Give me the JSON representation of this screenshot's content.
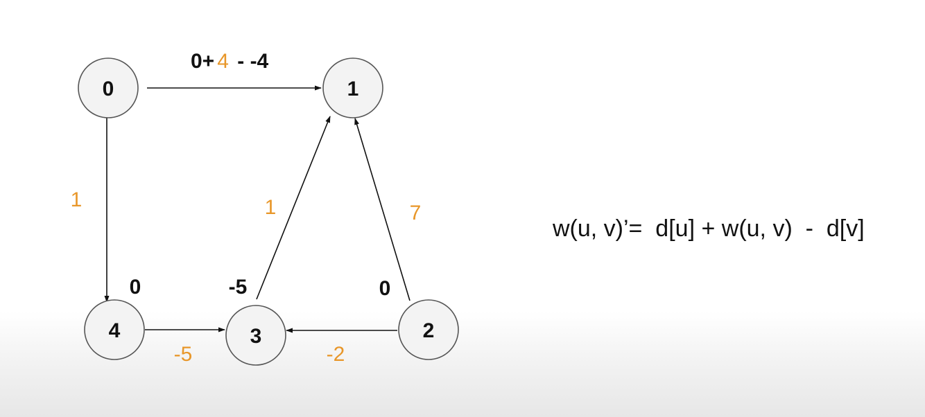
{
  "colors": {
    "accent": "#e8972a",
    "ink": "#111111",
    "node_fill": "#f3f3f3",
    "node_stroke": "#555555"
  },
  "nodes": [
    {
      "id": "0",
      "label": "0"
    },
    {
      "id": "1",
      "label": "1"
    },
    {
      "id": "2",
      "label": "2"
    },
    {
      "id": "3",
      "label": "3"
    },
    {
      "id": "4",
      "label": "4"
    }
  ],
  "distances": {
    "node_4": "0",
    "node_3": "-5",
    "node_2": "0"
  },
  "edges": [
    {
      "from": "0",
      "to": "1",
      "weight": "4"
    },
    {
      "from": "0",
      "to": "4",
      "weight": "1"
    },
    {
      "from": "4",
      "to": "3",
      "weight": "-5"
    },
    {
      "from": "3",
      "to": "1",
      "weight": "1"
    },
    {
      "from": "2",
      "to": "1",
      "weight": "7"
    },
    {
      "from": "2",
      "to": "3",
      "weight": "-2"
    }
  ],
  "edge_0_1_expression": {
    "prefix": "0+",
    "weight": "4",
    "suffix": " - -4"
  },
  "formula": "w(u, v)’=  d[u] + w(u, v)  -  d[v]"
}
